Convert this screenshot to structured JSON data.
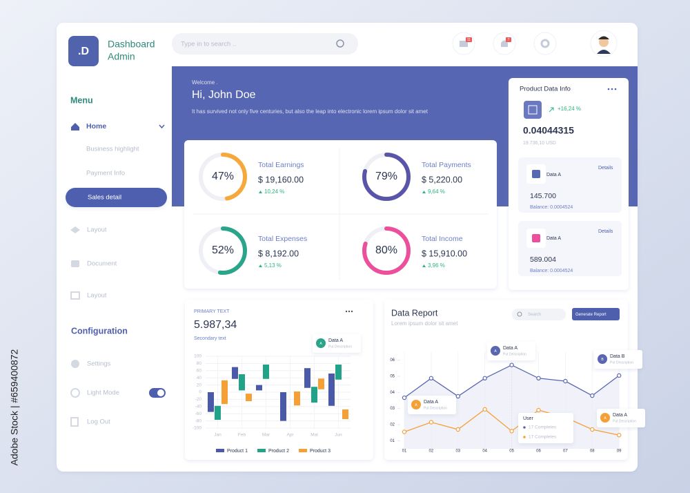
{
  "brand": {
    "logo": ".D",
    "title": "Dashboard",
    "subtitle": "Admin"
  },
  "search": {
    "placeholder": "Type in to search .."
  },
  "notifications": {
    "mail": "11",
    "alerts": "7"
  },
  "menu": {
    "heading": "Menu",
    "home": "Home",
    "items": [
      "Business highlight",
      "Payment Info",
      "Sales detail"
    ],
    "sections": [
      "Layout",
      "Document",
      "Layout"
    ]
  },
  "configuration": {
    "heading": "Configuration",
    "items": [
      "Settings",
      "Light Mode",
      "Log Out"
    ]
  },
  "welcome": {
    "greeting": "Welcome .",
    "name": "Hi, John Doe",
    "text": "It has survived not only five centuries, but also the leap into electronic lorem ipsum dolor sit amet"
  },
  "stats": [
    {
      "percent": 47,
      "percent_label": "47%",
      "label": "Total Earnings",
      "amount": "$ 19,160.00",
      "change": "10,24 %",
      "color": "#f6a83a"
    },
    {
      "percent": 79,
      "percent_label": "79%",
      "label": "Total Payments",
      "amount": "$ 5,220.00",
      "change": "9,64 %",
      "color": "#5a55a8"
    },
    {
      "percent": 52,
      "percent_label": "52%",
      "label": "Total Expenses",
      "amount": "$ 8,192.00",
      "change": "5,13 %",
      "color": "#2aa58a"
    },
    {
      "percent": 80,
      "percent_label": "80%",
      "label": "Total Income",
      "amount": "$ 15,910.00",
      "change": "3,96 %",
      "color": "#ec4f9b"
    }
  ],
  "product_info": {
    "title": "Product Data Info",
    "change": "+16,24 %",
    "value": "0.04044315",
    "usd": "19.736,10 USD",
    "cards": [
      {
        "name": "Data A",
        "link": "Details",
        "amount": "145.700",
        "balance": "Balance: 0.0004524"
      },
      {
        "name": "Data A",
        "link": "Details",
        "amount": "589.004",
        "balance": "Balance: 0.0004524"
      }
    ]
  },
  "bar_chart": {
    "type": "floating-bar",
    "label": "PRIMARY TEXT",
    "value": "5.987,34",
    "sublabel": "Secondary text",
    "tooltip": {
      "badge": "A",
      "title": "Data A",
      "text": "Put Description"
    },
    "categories": [
      "Jan",
      "Feb",
      "Mar",
      "Apr",
      "Mal",
      "Jun"
    ],
    "ylim": [
      -100,
      100
    ],
    "yticks": [
      100,
      80,
      60,
      40,
      20,
      0,
      -20,
      -40,
      -60,
      -80,
      -100
    ],
    "grid": true,
    "series": [
      {
        "name": "Product 1",
        "color": "#4a5aa8",
        "high": [
          0,
          70,
          20,
          0,
          67,
          52
        ],
        "low": [
          -55,
          37,
          5,
          -80,
          12,
          -38
        ]
      },
      {
        "name": "Product 2",
        "color": "#22a288",
        "high": [
          -38,
          50,
          77,
          null,
          15,
          77
        ],
        "low": [
          -77,
          5,
          37,
          null,
          -29,
          35
        ]
      },
      {
        "name": "Product 3",
        "color": "#f5a037",
        "high": [
          33,
          -4,
          null,
          2,
          38,
          -48
        ],
        "low": [
          -33,
          -25,
          null,
          -37,
          8,
          -75
        ]
      }
    ]
  },
  "line_chart": {
    "type": "line",
    "title": "Data Report",
    "subtitle": "Lorem ipsum dolor sit amet",
    "search": "Search",
    "button": "Generate Report",
    "categories": [
      "01",
      "02",
      "03",
      "04",
      "05",
      "06",
      "07",
      "08",
      "09"
    ],
    "ylim": [
      0.5,
      6.5
    ],
    "yticks": [
      {
        "value": 6,
        "label": "06"
      },
      {
        "value": 5,
        "label": "05"
      },
      {
        "value": 4,
        "label": "04"
      },
      {
        "value": 3,
        "label": "03"
      },
      {
        "value": 2,
        "label": "02"
      },
      {
        "value": 1,
        "label": "01"
      }
    ],
    "series": [
      {
        "color": "#5a67b0",
        "values": [
          3.67,
          4.88,
          3.76,
          4.88,
          5.7,
          4.88,
          4.7,
          3.8,
          5.05
        ]
      },
      {
        "color": "#f5a037",
        "values": [
          1.55,
          2.15,
          1.7,
          2.95,
          1.6,
          2.9,
          2.45,
          1.7,
          1.35
        ]
      }
    ],
    "tooltips": [
      {
        "badge": "A",
        "title": "Data A",
        "text": "Put Description"
      },
      {
        "badge": "B",
        "title": "Data B",
        "text": "Put Description"
      },
      {
        "badge": "A",
        "title": "Data A",
        "text": "Put Description"
      },
      {
        "badge": "A",
        "title": "Data A",
        "text": "Put Description"
      }
    ],
    "user_box": {
      "title": "User",
      "rows": [
        "17 Completes",
        "17 Completes"
      ]
    }
  },
  "watermark_id": "Adobe Stock | #659400872"
}
